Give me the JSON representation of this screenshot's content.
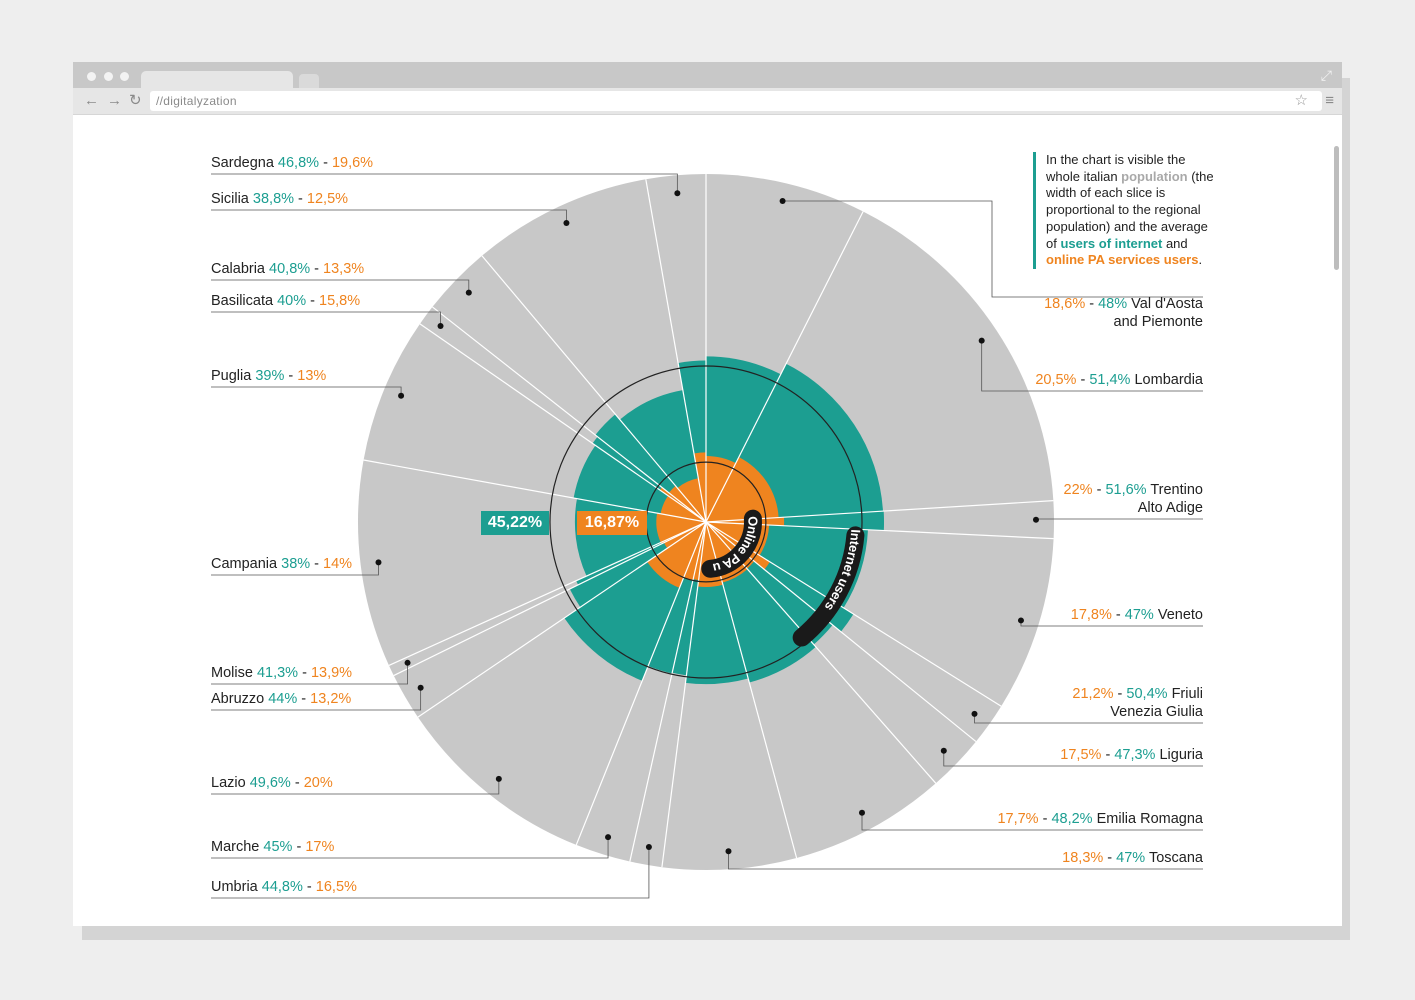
{
  "browser": {
    "url": "//digitalyzation",
    "nav_back": "←",
    "nav_forward": "→",
    "nav_reload": "↻",
    "star": "☆",
    "menu": "≡",
    "expand": "⤢"
  },
  "note": {
    "part1": "In the chart is visible the whole italian ",
    "population": "population",
    "part2": " (the width of each slice is proportional to the regional population) and the average of ",
    "internet": "users of internet",
    "and": " and ",
    "pa": "online PA services users",
    "end": "."
  },
  "center": {
    "internet_avg": "45,22%",
    "pa_avg": "16,87%",
    "internet_label": "Internet users",
    "pa_label": "Online PA users"
  },
  "colors": {
    "population": "#c8c8c8",
    "internet": "#1c9e91",
    "pa": "#ef841f",
    "leader": "#555555"
  },
  "chart_data": {
    "type": "radial-bar",
    "series": [
      {
        "name": "Internet users",
        "values": [
          48,
          51.4,
          51.6,
          47,
          50.4,
          47.3,
          48.2,
          47,
          44.8,
          45,
          49.6,
          44,
          41.3,
          38,
          39,
          40,
          40.8,
          38.8,
          46.8
        ]
      },
      {
        "name": "Online PA users",
        "values": [
          18.6,
          20.5,
          22,
          17.8,
          21.2,
          17.5,
          17.7,
          18.3,
          16.5,
          17,
          20,
          13.2,
          13.9,
          14,
          13,
          15.8,
          13.3,
          12.5,
          19.6
        ]
      }
    ],
    "categories": [
      "Val d'Aosta and Piemonte",
      "Lombardia",
      "Trentino Alto Adige",
      "Veneto",
      "Friuli Venezia Giulia",
      "Liguria",
      "Emilia Romagna",
      "Toscana",
      "Umbria",
      "Marche",
      "Lazio",
      "Abruzzo",
      "Molise",
      "Campania",
      "Puglia",
      "Basilicata",
      "Calabria",
      "Sicilia",
      "Sardegna"
    ],
    "regions": [
      {
        "l1": "Val d'Aosta",
        "l2": "and Piemonte",
        "internet": 48,
        "pa": 18.6,
        "internet_txt": "48%",
        "pa_txt": "18,6%",
        "pop": 4.5
      },
      {
        "l1": "Lombardia",
        "l2": "",
        "internet": 51.4,
        "pa": 20.5,
        "internet_txt": "51,4%",
        "pa_txt": "20,5%",
        "pop": 10.0
      },
      {
        "l1": "Trentino",
        "l2": "Alto Adige",
        "internet": 51.6,
        "pa": 22,
        "internet_txt": "51,6%",
        "pa_txt": "22%",
        "pop": 1.05
      },
      {
        "l1": "Veneto",
        "l2": "",
        "internet": 47,
        "pa": 17.8,
        "internet_txt": "47%",
        "pa_txt": "17,8%",
        "pop": 4.9
      },
      {
        "l1": "Friuli",
        "l2": "Venezia Giulia",
        "internet": 50.4,
        "pa": 21.2,
        "internet_txt": "50,4%",
        "pa_txt": "21,2%",
        "pop": 1.2
      },
      {
        "l1": "Liguria",
        "l2": "",
        "internet": 47.3,
        "pa": 17.5,
        "internet_txt": "47,3%",
        "pa_txt": "17,5%",
        "pop": 1.6
      },
      {
        "l1": "Emilia Romagna",
        "l2": "",
        "internet": 48.2,
        "pa": 17.7,
        "internet_txt": "48,2%",
        "pa_txt": "17,7%",
        "pop": 4.4
      },
      {
        "l1": "Toscana",
        "l2": "",
        "internet": 47,
        "pa": 18.3,
        "internet_txt": "47%",
        "pa_txt": "18,3%",
        "pop": 3.75
      },
      {
        "l1": "Umbria",
        "l2": "",
        "internet": 44.8,
        "pa": 16.5,
        "internet_txt": "44,8%",
        "pa_txt": "16,5%",
        "pop": 0.9
      },
      {
        "l1": "Marche",
        "l2": "",
        "internet": 45,
        "pa": 17,
        "internet_txt": "45%",
        "pa_txt": "17%",
        "pop": 1.55
      },
      {
        "l1": "Lazio",
        "l2": "",
        "internet": 49.6,
        "pa": 20,
        "internet_txt": "49,6%",
        "pa_txt": "20%",
        "pop": 5.7
      },
      {
        "l1": "Abruzzo",
        "l2": "",
        "internet": 44,
        "pa": 13.2,
        "internet_txt": "44%",
        "pa_txt": "13,2%",
        "pop": 1.33
      },
      {
        "l1": "Molise",
        "l2": "",
        "internet": 41.3,
        "pa": 13.9,
        "internet_txt": "41,3%",
        "pa_txt": "13,9%",
        "pop": 0.31
      },
      {
        "l1": "Campania",
        "l2": "",
        "internet": 38,
        "pa": 14,
        "internet_txt": "38%",
        "pa_txt": "14%",
        "pop": 5.8
      },
      {
        "l1": "Puglia",
        "l2": "",
        "internet": 39,
        "pa": 13,
        "internet_txt": "39%",
        "pa_txt": "13%",
        "pop": 4.1
      },
      {
        "l1": "Basilicata",
        "l2": "",
        "internet": 40,
        "pa": 15.8,
        "internet_txt": "40%",
        "pa_txt": "15,8%",
        "pop": 0.58
      },
      {
        "l1": "Calabria",
        "l2": "",
        "internet": 40.8,
        "pa": 13.3,
        "internet_txt": "40,8%",
        "pa_txt": "13,3%",
        "pop": 1.97
      },
      {
        "l1": "Sicilia",
        "l2": "",
        "internet": 38.8,
        "pa": 12.5,
        "internet_txt": "38,8%",
        "pa_txt": "12,5%",
        "pop": 5.05
      },
      {
        "l1": "Sardegna",
        "l2": "",
        "internet": 46.8,
        "pa": 19.6,
        "internet_txt": "46,8%",
        "pa_txt": "19,6%",
        "pop": 1.67
      }
    ],
    "averages": {
      "internet": 45.22,
      "pa": 16.87
    }
  }
}
